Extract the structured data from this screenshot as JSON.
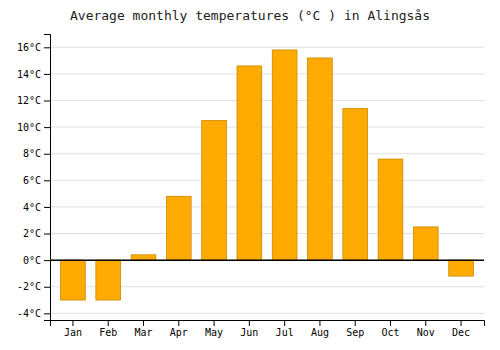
{
  "chart_data": {
    "type": "bar",
    "title": "Average monthly temperatures (°C ) in Alingsås",
    "categories": [
      "Jan",
      "Feb",
      "Mar",
      "Apr",
      "May",
      "Jun",
      "Jul",
      "Aug",
      "Sep",
      "Oct",
      "Nov",
      "Dec"
    ],
    "values": [
      -3.0,
      -3.0,
      0.4,
      4.8,
      10.5,
      14.6,
      15.8,
      15.2,
      11.4,
      7.6,
      2.5,
      -1.2
    ],
    "color": "#FFAA00",
    "ylim": [
      -4.5,
      17.0
    ],
    "yticks": [
      {
        "value": -4,
        "label": "-4°C"
      },
      {
        "value": -2,
        "label": "-2°C"
      },
      {
        "value": 0,
        "label": "0°C"
      },
      {
        "value": 2,
        "label": "2°C"
      },
      {
        "value": 4,
        "label": "4°C"
      },
      {
        "value": 6,
        "label": "6°C"
      },
      {
        "value": 8,
        "label": "8°C"
      },
      {
        "value": 10,
        "label": "10°C"
      },
      {
        "value": 12,
        "label": "12°C"
      },
      {
        "value": 14,
        "label": "14°C"
      },
      {
        "value": 16,
        "label": "16°C"
      }
    ],
    "grid": true
  }
}
